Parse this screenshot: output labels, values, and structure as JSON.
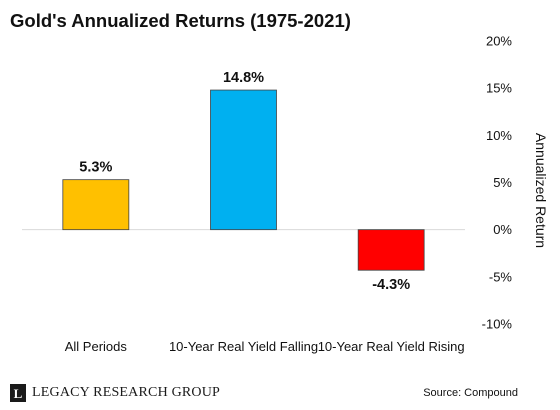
{
  "chart_data": {
    "type": "bar",
    "title": "Gold's Annualized Returns (1975-2021)",
    "ylabel": "Annualized Return",
    "categories": [
      "All Periods",
      "10-Year Real Yield Falling",
      "10-Year Real Yield Rising"
    ],
    "values": [
      5.3,
      14.8,
      -4.3
    ],
    "data_labels": [
      "5.3%",
      "14.8%",
      "-4.3%"
    ],
    "colors": [
      "#FFC000",
      "#00B0F0",
      "#FF0000"
    ],
    "ylim": [
      -10,
      20
    ],
    "yticks": [
      20,
      15,
      10,
      5,
      0,
      -5,
      -10
    ],
    "ytick_labels": [
      "20%",
      "15%",
      "10%",
      "5%",
      "0%",
      "-5%",
      "-10%"
    ],
    "grid": false,
    "legend": "none",
    "yaxis_side": "right"
  },
  "footer": {
    "logo_mark": "L",
    "brand": "LEGACY RESEARCH GROUP",
    "source": "Source: Compound"
  }
}
